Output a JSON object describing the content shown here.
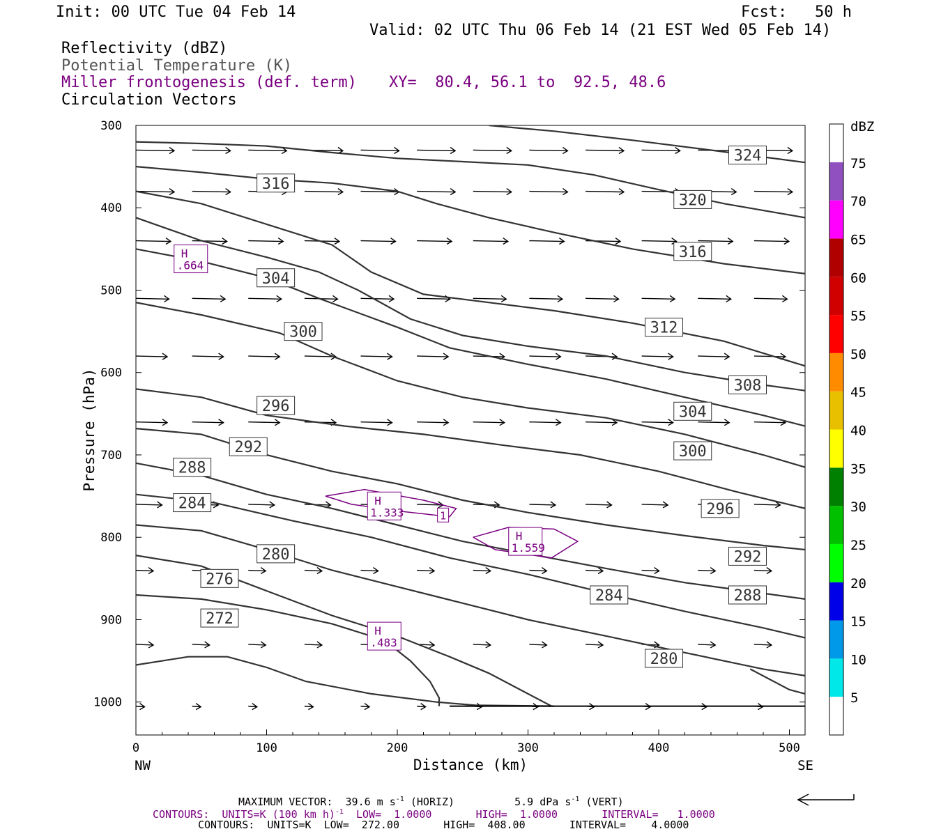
{
  "header": {
    "init": "Init: 00 UTC Tue 04 Feb 14",
    "fcst": "Fcst:   50 h",
    "valid": "Valid: 02 UTC Thu 06 Feb 14 (21 EST Wed 05 Feb 14)",
    "field1": "Reflectivity (dBZ)",
    "field2": "Potential Temperature (K)",
    "field3": "Miller frontogenesis (def. term)",
    "xy": "XY=  80.4, 56.1 to  92.5, 48.6",
    "field4": "Circulation Vectors"
  },
  "colors": {
    "theta": "#333333",
    "frontogenesis": "#7a0080",
    "vectors": "#000000"
  },
  "chart_data": {
    "type": "cross-section",
    "xlabel": "Distance (km)",
    "ylabel": "Pressure (hPa)",
    "xlim": [
      0,
      512
    ],
    "ylim": [
      1040,
      300
    ],
    "x_ticks": [
      0,
      100,
      200,
      300,
      400,
      500
    ],
    "y_ticks": [
      300,
      400,
      500,
      600,
      700,
      800,
      900,
      1000
    ],
    "x_end_labels": {
      "left": "NW",
      "right": "SE"
    },
    "theta_contours": [
      {
        "value": 324,
        "pts": [
          [
            270,
            300
          ],
          [
            320,
            307
          ],
          [
            380,
            318
          ],
          [
            440,
            330
          ],
          [
            512,
            345
          ]
        ]
      },
      {
        "value": 320,
        "pts": [
          [
            0,
            320
          ],
          [
            50,
            322
          ],
          [
            100,
            325
          ],
          [
            150,
            333
          ],
          [
            200,
            340
          ],
          [
            250,
            344
          ],
          [
            300,
            348
          ],
          [
            350,
            360
          ],
          [
            400,
            378
          ],
          [
            450,
            395
          ],
          [
            512,
            412
          ]
        ]
      },
      {
        "value": 316,
        "pts": [
          [
            0,
            350
          ],
          [
            50,
            357
          ],
          [
            100,
            365
          ],
          [
            150,
            370
          ],
          [
            200,
            380
          ],
          [
            230,
            395
          ],
          [
            270,
            412
          ],
          [
            320,
            430
          ],
          [
            380,
            450
          ],
          [
            450,
            468
          ],
          [
            512,
            480
          ]
        ]
      },
      {
        "value": 312,
        "pts": [
          [
            0,
            380
          ],
          [
            50,
            395
          ],
          [
            100,
            420
          ],
          [
            150,
            445
          ],
          [
            180,
            478
          ],
          [
            220,
            505
          ],
          [
            270,
            515
          ],
          [
            320,
            525
          ],
          [
            380,
            540
          ],
          [
            450,
            562
          ],
          [
            512,
            592
          ]
        ]
      },
      {
        "value": 308,
        "pts": [
          [
            0,
            412
          ],
          [
            50,
            440
          ],
          [
            100,
            460
          ],
          [
            140,
            478
          ],
          [
            170,
            500
          ],
          [
            210,
            535
          ],
          [
            250,
            555
          ],
          [
            300,
            568
          ],
          [
            360,
            580
          ],
          [
            420,
            600
          ],
          [
            480,
            615
          ],
          [
            512,
            622
          ]
        ]
      },
      {
        "value": 304,
        "pts": [
          [
            0,
            450
          ],
          [
            50,
            465
          ],
          [
            100,
            485
          ],
          [
            140,
            510
          ],
          [
            200,
            545
          ],
          [
            240,
            570
          ],
          [
            300,
            590
          ],
          [
            360,
            608
          ],
          [
            420,
            630
          ],
          [
            480,
            652
          ],
          [
            512,
            665
          ]
        ]
      },
      {
        "value": 300,
        "pts": [
          [
            0,
            515
          ],
          [
            50,
            530
          ],
          [
            110,
            552
          ],
          [
            150,
            580
          ],
          [
            200,
            610
          ],
          [
            250,
            630
          ],
          [
            300,
            643
          ],
          [
            360,
            655
          ],
          [
            420,
            675
          ],
          [
            480,
            700
          ],
          [
            512,
            715
          ]
        ]
      },
      {
        "value": 296,
        "pts": [
          [
            0,
            620
          ],
          [
            50,
            630
          ],
          [
            100,
            652
          ],
          [
            160,
            665
          ],
          [
            220,
            675
          ],
          [
            280,
            688
          ],
          [
            340,
            700
          ],
          [
            400,
            720
          ],
          [
            460,
            745
          ],
          [
            512,
            765
          ]
        ]
      },
      {
        "value": 292,
        "pts": [
          [
            0,
            668
          ],
          [
            50,
            675
          ],
          [
            100,
            700
          ],
          [
            150,
            720
          ],
          [
            200,
            735
          ],
          [
            250,
            755
          ],
          [
            300,
            770
          ],
          [
            360,
            785
          ],
          [
            420,
            798
          ],
          [
            480,
            810
          ],
          [
            512,
            815
          ]
        ]
      },
      {
        "value": 288,
        "pts": [
          [
            0,
            710
          ],
          [
            50,
            725
          ],
          [
            100,
            748
          ],
          [
            150,
            765
          ],
          [
            200,
            785
          ],
          [
            250,
            805
          ],
          [
            300,
            820
          ],
          [
            360,
            838
          ],
          [
            420,
            855
          ],
          [
            480,
            868
          ],
          [
            512,
            875
          ]
        ]
      },
      {
        "value": 284,
        "pts": [
          [
            0,
            748
          ],
          [
            60,
            758
          ],
          [
            120,
            780
          ],
          [
            180,
            800
          ],
          [
            240,
            825
          ],
          [
            300,
            845
          ],
          [
            360,
            868
          ],
          [
            420,
            890
          ],
          [
            480,
            910
          ],
          [
            512,
            922
          ]
        ]
      },
      {
        "value": 280,
        "pts": [
          [
            0,
            785
          ],
          [
            50,
            792
          ],
          [
            100,
            815
          ],
          [
            150,
            840
          ],
          [
            200,
            860
          ],
          [
            250,
            880
          ],
          [
            300,
            900
          ],
          [
            360,
            920
          ],
          [
            420,
            940
          ],
          [
            480,
            960
          ],
          [
            512,
            968
          ]
        ]
      },
      {
        "value": 276,
        "pts": [
          [
            0,
            822
          ],
          [
            50,
            835
          ],
          [
            100,
            865
          ],
          [
            150,
            895
          ],
          [
            200,
            920
          ],
          [
            240,
            945
          ],
          [
            270,
            965
          ],
          [
            300,
            990
          ],
          [
            318,
            1005
          ]
        ]
      },
      {
        "value": 272,
        "pts": [
          [
            0,
            870
          ],
          [
            50,
            875
          ],
          [
            100,
            888
          ],
          [
            150,
            905
          ],
          [
            190,
            925
          ],
          [
            210,
            950
          ],
          [
            225,
            975
          ],
          [
            232,
            995
          ],
          [
            232,
            1005
          ]
        ]
      },
      {
        "value": 272,
        "pts": [
          [
            0,
            955
          ],
          [
            40,
            945
          ],
          [
            70,
            945
          ],
          [
            100,
            958
          ],
          [
            130,
            975
          ],
          [
            180,
            990
          ],
          [
            230,
            1000
          ],
          [
            260,
            1004
          ],
          [
            320,
            1005
          ]
        ]
      },
      {
        "value": 284,
        "pts": [
          [
            470,
            960
          ],
          [
            500,
            985
          ],
          [
            512,
            990
          ]
        ]
      }
    ],
    "surface_line": {
      "pts": [
        [
          240,
          1005
        ],
        [
          512,
          1005
        ]
      ]
    },
    "theta_labels": [
      {
        "value": 324,
        "x": 468,
        "p": 336
      },
      {
        "value": 316,
        "x": 107,
        "p": 370
      },
      {
        "value": 320,
        "x": 426,
        "p": 390
      },
      {
        "value": 316,
        "x": 426,
        "p": 453
      },
      {
        "value": 304,
        "x": 107,
        "p": 485
      },
      {
        "value": 300,
        "x": 128,
        "p": 550
      },
      {
        "value": 312,
        "x": 404,
        "p": 545
      },
      {
        "value": 308,
        "x": 468,
        "p": 615
      },
      {
        "value": 296,
        "x": 107,
        "p": 640
      },
      {
        "value": 304,
        "x": 426,
        "p": 647
      },
      {
        "value": 292,
        "x": 86,
        "p": 690
      },
      {
        "value": 300,
        "x": 426,
        "p": 695
      },
      {
        "value": 288,
        "x": 43,
        "p": 715
      },
      {
        "value": 284,
        "x": 43,
        "p": 758
      },
      {
        "value": 296,
        "x": 447,
        "p": 765
      },
      {
        "value": 280,
        "x": 107,
        "p": 820
      },
      {
        "value": 292,
        "x": 468,
        "p": 823
      },
      {
        "value": 276,
        "x": 64,
        "p": 850
      },
      {
        "value": 284,
        "x": 362,
        "p": 870
      },
      {
        "value": 288,
        "x": 468,
        "p": 870
      },
      {
        "value": 272,
        "x": 64,
        "p": 898
      },
      {
        "value": 280,
        "x": 404,
        "p": 947
      }
    ],
    "frontogenesis_maxima": [
      {
        "label": "H",
        "value": ".664",
        "x": 42,
        "p": 462
      },
      {
        "label": "H",
        "value": "1.333",
        "x": 190,
        "p": 762
      },
      {
        "label": "H",
        "value": "1.559",
        "x": 298,
        "p": 805
      },
      {
        "label": "H",
        "value": ".483",
        "x": 190,
        "p": 920
      }
    ],
    "frontogenesis_contour_label": {
      "value": "1",
      "x": 235,
      "p": 773
    },
    "frontogenesis_contours": [
      {
        "pts": [
          [
            145,
            750
          ],
          [
            175,
            742
          ],
          [
            220,
            755
          ],
          [
            245,
            765
          ],
          [
            240,
            775
          ],
          [
            200,
            768
          ],
          [
            165,
            760
          ],
          [
            145,
            750
          ]
        ]
      },
      {
        "pts": [
          [
            258,
            800
          ],
          [
            285,
            788
          ],
          [
            320,
            790
          ],
          [
            338,
            805
          ],
          [
            318,
            825
          ],
          [
            275,
            815
          ],
          [
            258,
            800
          ]
        ]
      }
    ],
    "vector_rows": [
      {
        "p": 330,
        "u": 22
      },
      {
        "p": 380,
        "u": 22
      },
      {
        "p": 440,
        "u": 20
      },
      {
        "p": 510,
        "u": 19
      },
      {
        "p": 580,
        "u": 18
      },
      {
        "p": 660,
        "u": 18
      },
      {
        "p": 760,
        "u": 15
      },
      {
        "p": 840,
        "u": 10
      },
      {
        "p": 930,
        "u": 10
      },
      {
        "p": 1005,
        "u": 5
      }
    ],
    "colorbar": {
      "title": "dBZ",
      "levels": [
        5,
        10,
        15,
        20,
        25,
        30,
        35,
        40,
        45,
        50,
        55,
        60,
        65,
        70,
        75
      ],
      "colors": [
        "#ffffff",
        "#00e8e8",
        "#0098e8",
        "#0000e8",
        "#00ff00",
        "#00c000",
        "#008000",
        "#ffff00",
        "#e8c000",
        "#ff8c00",
        "#ff0000",
        "#d00000",
        "#b00000",
        "#ff00ff",
        "#9050c0",
        "#ffffff"
      ]
    }
  },
  "footer": {
    "max_vector": "MAXIMUM VECTOR:  39.6 m s",
    "max_vector_sup": "-1",
    "max_vector_horiz": " (HORIZ)",
    "max_vector_vert": "5.9 dPa s",
    "max_vector_vert_sup": "-1",
    "max_vector_vert_tail": " (VERT)",
    "contours1_a": "CONTOURS:  UNITS=K (100 km h)",
    "contours1_sup": "-1",
    "contours1_b": "  LOW=  1.0000       HIGH=  1.0000       INTERVAL=   1.0000",
    "contours2": "CONTOURS:  UNITS=K  LOW=  272.00       HIGH=  408.00       INTERVAL=    4.0000"
  }
}
